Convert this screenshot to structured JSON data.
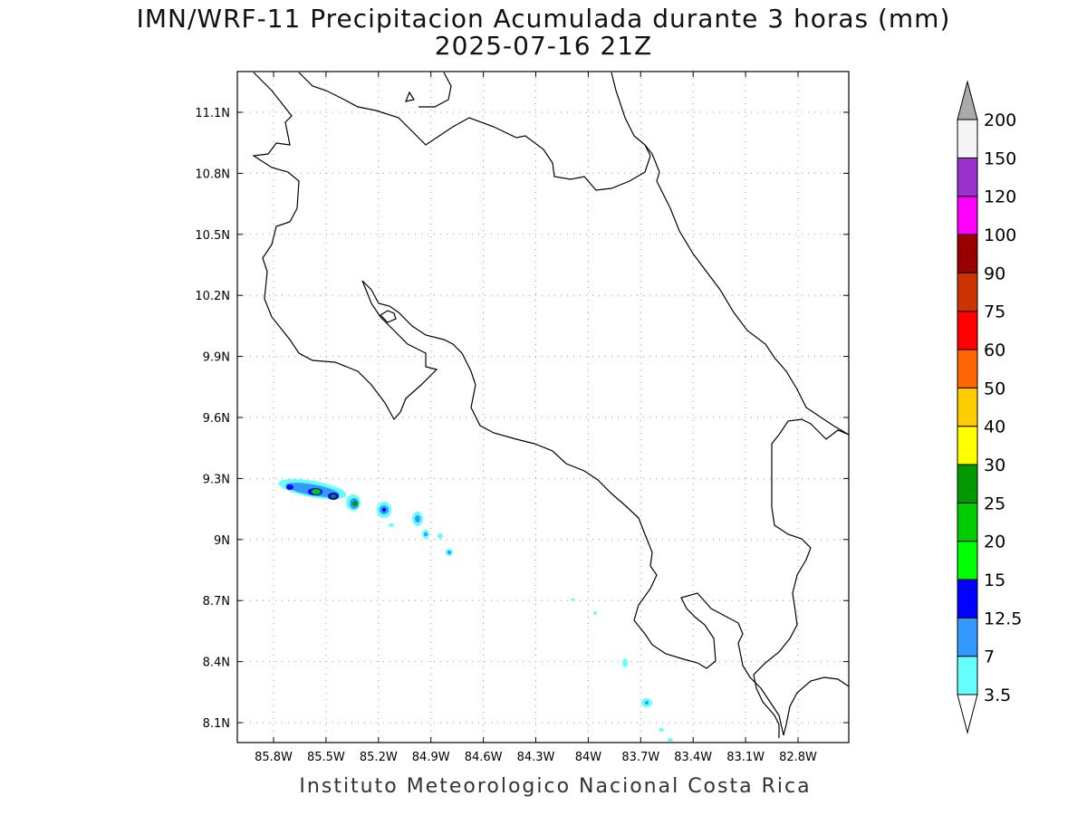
{
  "title": {
    "line1": "IMN/WRF-11 Precipitacion Acumulada durante 3 horas (mm)",
    "line2": "2025-07-16 21Z"
  },
  "axes": {
    "lon_ticks": [
      "85.8W",
      "85.5W",
      "85.2W",
      "84.9W",
      "84.6W",
      "84.3W",
      "84W",
      "83.7W",
      "83.4W",
      "83.1W",
      "82.8W"
    ],
    "lat_ticks": [
      "11.1N",
      "10.8N",
      "10.5N",
      "10.2N",
      "9.9N",
      "9.6N",
      "9.3N",
      "9N",
      "8.7N",
      "8.4N",
      "8.1N"
    ]
  },
  "colorbar": {
    "labels": [
      "3.5",
      "7",
      "12.5",
      "15",
      "20",
      "25",
      "30",
      "40",
      "50",
      "60",
      "75",
      "90",
      "100",
      "120",
      "150",
      "200"
    ],
    "colors": [
      "#66ffff",
      "#3399ff",
      "#0000ff",
      "#00ff00",
      "#00cc00",
      "#009900",
      "#ffff00",
      "#ffcc00",
      "#ff6600",
      "#ff0000",
      "#cc3300",
      "#990000",
      "#ff00ff",
      "#9933cc",
      "#f5f5f5",
      "#aaaaaa"
    ]
  },
  "footer": "Instituto Meteorologico Nacional Costa Rica"
}
